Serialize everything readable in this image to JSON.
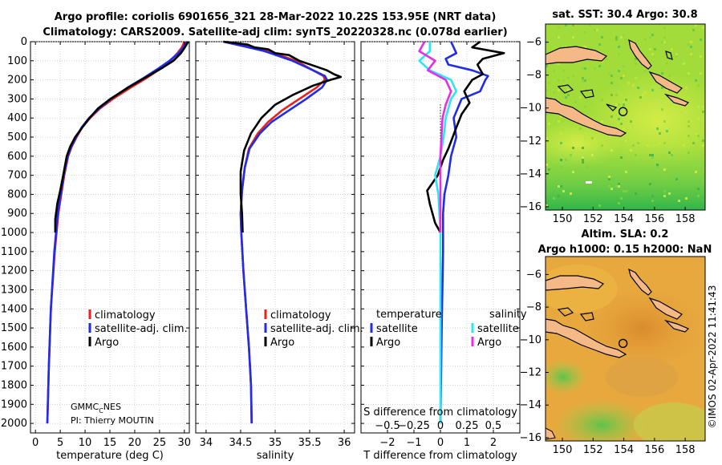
{
  "title": {
    "line1": "Argo profile: coriolis 6901656_321 28-Mar-2022 10.22S 153.95E (NRT data)",
    "line2": "Climatology: CARS2009. Satellite-adj clim: synTS_20220328.nc (0.078d earlier)"
  },
  "credit": {
    "org": "GMMC",
    "org_sub": "C",
    "org_tail": "NES",
    "pi": "PI: Thierry MOUTIN"
  },
  "timestamp": "©IMOS 02-Apr-2022 11:41:43",
  "colors": {
    "clim": "#e8211b",
    "sat": "#1f2de8",
    "argo": "#000000",
    "sat_s": "#2ee6ee",
    "argo_s": "#e52ee5"
  },
  "chart_data": [
    {
      "type": "line",
      "id": "temperature",
      "xlabel": "temperature (deg C)",
      "ylabel": "",
      "xlim": [
        -1,
        31
      ],
      "ylim": [
        2050,
        0
      ],
      "xticks": [
        0,
        5,
        10,
        15,
        20,
        25,
        30
      ],
      "yticks": [
        0,
        100,
        200,
        300,
        400,
        500,
        600,
        700,
        800,
        900,
        1000,
        1100,
        1200,
        1300,
        1400,
        1500,
        1600,
        1700,
        1800,
        1900,
        2000
      ],
      "legend": [
        "climatology",
        "satellite-adj. clim.",
        "Argo"
      ],
      "series": [
        {
          "name": "climatology",
          "color": "clim",
          "x": [
            30.0,
            29.5,
            28.6,
            27.2,
            25.3,
            22.4,
            19.2,
            15.6,
            13.0,
            11.0,
            9.4,
            8.3,
            7.3,
            6.6,
            5.8,
            5.2,
            4.6,
            3.9,
            3.1,
            2.7,
            2.4
          ],
          "y": [
            0,
            30,
            60,
            100,
            140,
            190,
            240,
            300,
            350,
            400,
            450,
            500,
            550,
            600,
            700,
            800,
            900,
            1100,
            1400,
            1700,
            2000
          ]
        },
        {
          "name": "satellite-adj. clim.",
          "color": "sat",
          "x": [
            30.4,
            29.8,
            28.8,
            27.0,
            24.8,
            21.8,
            18.6,
            15.2,
            12.8,
            10.8,
            9.3,
            8.2,
            7.2,
            6.5,
            5.7,
            5.1,
            4.5,
            3.8,
            3.1,
            2.7,
            2.4
          ],
          "y": [
            0,
            30,
            60,
            100,
            140,
            190,
            240,
            300,
            350,
            400,
            450,
            500,
            550,
            600,
            700,
            800,
            900,
            1100,
            1400,
            1700,
            2000
          ]
        },
        {
          "name": "Argo",
          "color": "argo",
          "x": [
            30.8,
            30.1,
            29.3,
            27.8,
            25.4,
            22.0,
            18.7,
            15.1,
            12.6,
            10.9,
            9.4,
            8.0,
            7.0,
            6.3,
            5.6,
            5.0,
            4.4,
            4.0,
            4.0
          ],
          "y": [
            0,
            30,
            60,
            100,
            140,
            190,
            240,
            300,
            350,
            400,
            450,
            500,
            550,
            600,
            700,
            780,
            850,
            930,
            1000
          ]
        }
      ]
    },
    {
      "type": "line",
      "id": "salinity",
      "xlabel": "salinity",
      "ylabel": "",
      "xlim": [
        33.85,
        36.15
      ],
      "ylim": [
        2050,
        0
      ],
      "xticks": [
        34,
        34.5,
        35,
        35.5,
        36
      ],
      "legend": [
        "climatology",
        "satellite-adj. clim.",
        "Argo"
      ],
      "series": [
        {
          "name": "climatology",
          "color": "clim",
          "x": [
            34.3,
            34.55,
            34.9,
            35.3,
            35.55,
            35.7,
            35.72,
            35.6,
            35.35,
            35.1,
            34.9,
            34.75,
            34.62,
            34.56,
            34.52,
            34.5,
            34.51,
            34.54,
            34.58,
            34.62,
            34.65,
            34.66
          ],
          "y": [
            0,
            20,
            50,
            100,
            150,
            180,
            200,
            240,
            300,
            360,
            420,
            480,
            560,
            660,
            780,
            900,
            1000,
            1200,
            1400,
            1600,
            1800,
            2000
          ]
        },
        {
          "name": "satellite-adj. clim.",
          "color": "sat",
          "x": [
            34.25,
            34.5,
            34.85,
            35.25,
            35.55,
            35.72,
            35.75,
            35.68,
            35.45,
            35.2,
            34.95,
            34.78,
            34.63,
            34.56,
            34.52,
            34.5,
            34.51,
            34.54,
            34.58,
            34.62,
            34.65,
            34.66
          ],
          "y": [
            0,
            20,
            50,
            100,
            150,
            180,
            200,
            240,
            300,
            360,
            420,
            480,
            560,
            660,
            780,
            900,
            1000,
            1200,
            1400,
            1600,
            1800,
            2000
          ]
        },
        {
          "name": "Argo",
          "color": "argo",
          "x": [
            34.25,
            34.6,
            34.7,
            34.9,
            35.0,
            35.2,
            35.35,
            35.75,
            35.85,
            35.95,
            35.8,
            35.55,
            35.25,
            35.0,
            34.8,
            34.65,
            34.55,
            34.5,
            34.5,
            34.52,
            34.53
          ],
          "y": [
            0,
            15,
            30,
            40,
            60,
            70,
            100,
            150,
            170,
            185,
            200,
            230,
            280,
            330,
            400,
            480,
            570,
            680,
            800,
            900,
            1000
          ]
        }
      ]
    },
    {
      "type": "line",
      "id": "difference",
      "xlabel": "T difference from climatology",
      "x2label": "S difference from climatology",
      "xlim": [
        -3,
        3
      ],
      "x2lim": [
        -0.75,
        0.75
      ],
      "ylim": [
        2050,
        0
      ],
      "xticks": [
        -2,
        -1,
        0,
        1,
        2
      ],
      "x2ticks": [
        -0.5,
        -0.25,
        0,
        0.25,
        0.5
      ],
      "legend_left_title": "temperature",
      "legend_right_title": "salinity",
      "legend": [
        "satellite",
        "Argo",
        "satellite",
        "Argo"
      ],
      "series": [
        {
          "name": "T satellite",
          "color": "sat",
          "x": [
            0.4,
            0.5,
            0.6,
            0.2,
            0.3,
            1.2,
            1.8,
            1.7,
            1.6,
            1.5,
            0.8,
            0.5,
            0.6,
            0.4,
            0.3,
            0.15,
            0.1,
            0.1,
            0.05,
            0.0
          ],
          "y": [
            0,
            30,
            60,
            90,
            120,
            150,
            180,
            200,
            230,
            260,
            300,
            400,
            500,
            600,
            700,
            800,
            900,
            1100,
            1500,
            2000
          ]
        },
        {
          "name": "T Argo",
          "color": "argo",
          "x": [
            1.5,
            1.2,
            2.4,
            1.6,
            1.4,
            1.6,
            1.2,
            0.9,
            1.1,
            0.8,
            0.6,
            0.3,
            0.1,
            -0.1,
            -0.5,
            -0.4,
            -0.3,
            -0.2,
            0.0
          ],
          "y": [
            0,
            30,
            60,
            90,
            120,
            170,
            200,
            260,
            320,
            380,
            450,
            560,
            620,
            700,
            780,
            850,
            900,
            950,
            1000
          ]
        },
        {
          "name": "S satellite",
          "color": "sat_s",
          "x": [
            -0.1,
            -0.1,
            -0.2,
            -0.1,
            0.1,
            0.15,
            0.1,
            0.05,
            0.03,
            0.0,
            -0.05,
            -0.02,
            0.0,
            0.0
          ],
          "y": [
            0,
            50,
            100,
            150,
            200,
            260,
            300,
            400,
            500,
            600,
            700,
            800,
            1000,
            2000
          ]
        },
        {
          "name": "S Argo",
          "color": "argo_s",
          "x": [
            -0.15,
            -0.2,
            -0.05,
            -0.12,
            0.05,
            0.1,
            0.05,
            0.02,
            0.0,
            0.0
          ],
          "y": [
            0,
            50,
            100,
            150,
            200,
            260,
            330,
            400,
            600,
            1000
          ]
        }
      ]
    },
    {
      "type": "heatmap",
      "id": "sst_map",
      "title": "sat. SST: 30.4 Argo: 30.8",
      "xticks": [
        150,
        152,
        154,
        156,
        158
      ],
      "yticks": [
        -6,
        -8,
        -10,
        -12,
        -14,
        -16
      ],
      "xlim": [
        148.9,
        159.3
      ],
      "ylim": [
        -16.2,
        -4.9
      ],
      "marker": {
        "lon": 153.95,
        "lat": -10.22
      }
    },
    {
      "type": "heatmap",
      "id": "sla_map",
      "title_line1": "Altim. SLA: 0.2",
      "title_line2": "Argo h1000: 0.15 h2000: NaN",
      "xticks": [
        150,
        152,
        154,
        156,
        158
      ],
      "yticks": [
        -6,
        -8,
        -10,
        -12,
        -14,
        -16
      ],
      "xlim": [
        148.9,
        159.3
      ],
      "ylim": [
        -16.2,
        -4.9
      ],
      "marker": {
        "lon": 153.95,
        "lat": -10.22
      }
    }
  ]
}
